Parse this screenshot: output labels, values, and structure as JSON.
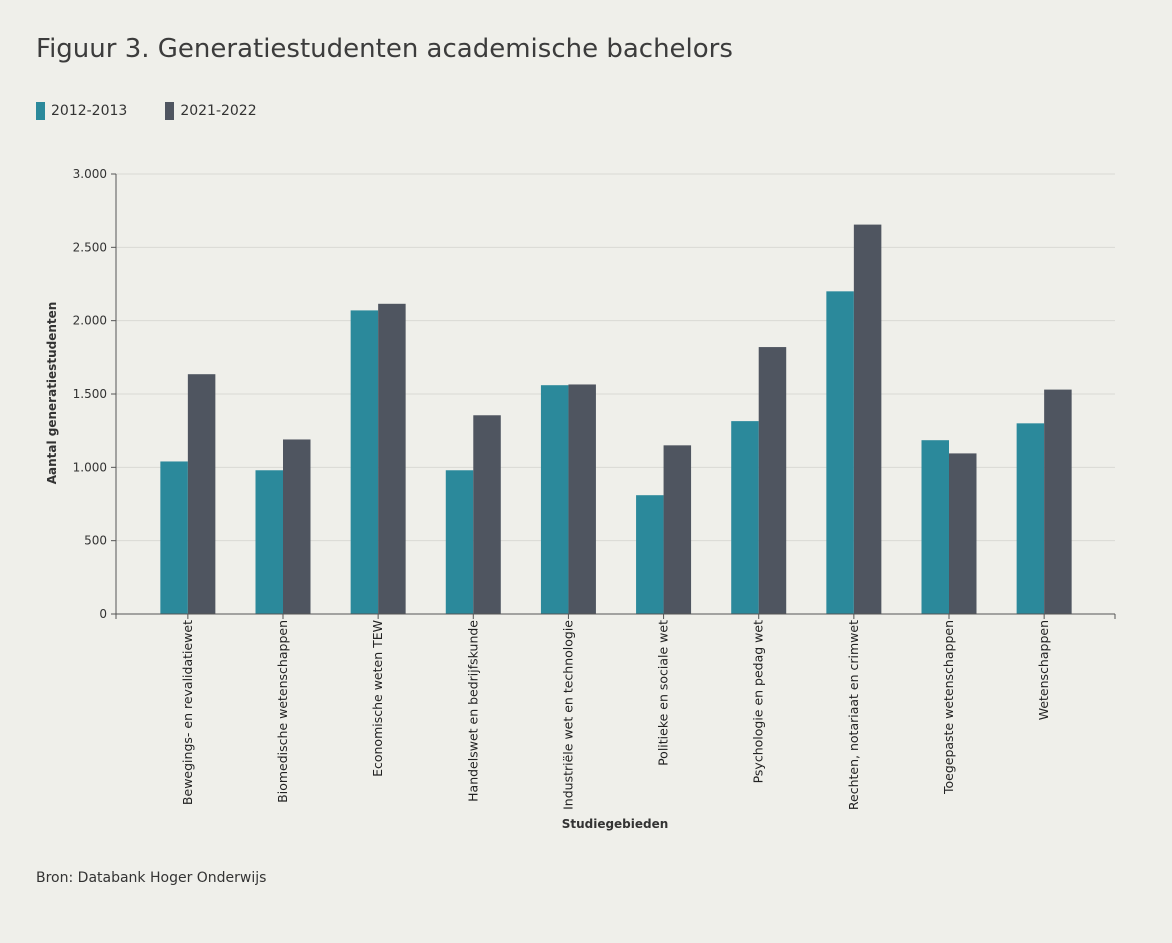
{
  "title": "Figuur 3. Generatiestudenten academische bachelors",
  "source": "Bron: Databank Hoger Onderwijs",
  "colors": {
    "background": "#efefea",
    "series_2012": "#2b899b",
    "series_2021": "#4f5560",
    "grid": "#d9d9d4",
    "axis": "#555555"
  },
  "chart_data": {
    "type": "bar",
    "title": "Figuur 3. Generatiestudenten academische bachelors",
    "xlabel": "Studiegebieden",
    "ylabel": "Aantal generatiestudenten",
    "ylim": [
      0,
      3000
    ],
    "yticks": [
      0,
      500,
      1000,
      1500,
      2000,
      2500,
      3000
    ],
    "ytick_labels": [
      "0",
      "500",
      "1.000",
      "1.500",
      "2.000",
      "2.500",
      "3.000"
    ],
    "grid": true,
    "legend_position": "top-left",
    "categories": [
      "Bewegings- en revalidatiewet",
      "Biomedische wetenschappen",
      "Economische weten TEW",
      "Handelswet en bedrijfskunde",
      "Industriële wet en technologie",
      "Politieke en sociale wet",
      "Psychologie en pedag wet",
      "Rechten, notariaat en crimwet",
      "Toegepaste wetenschappen",
      "Wetenschappen"
    ],
    "series": [
      {
        "name": "2012-2013",
        "color": "#2b899b",
        "values": [
          1040,
          980,
          2070,
          980,
          1560,
          810,
          1315,
          2200,
          1185,
          1300
        ]
      },
      {
        "name": "2021-2022",
        "color": "#4f5560",
        "values": [
          1635,
          1190,
          2115,
          1355,
          1565,
          1150,
          1820,
          2655,
          1095,
          1530
        ]
      }
    ]
  }
}
